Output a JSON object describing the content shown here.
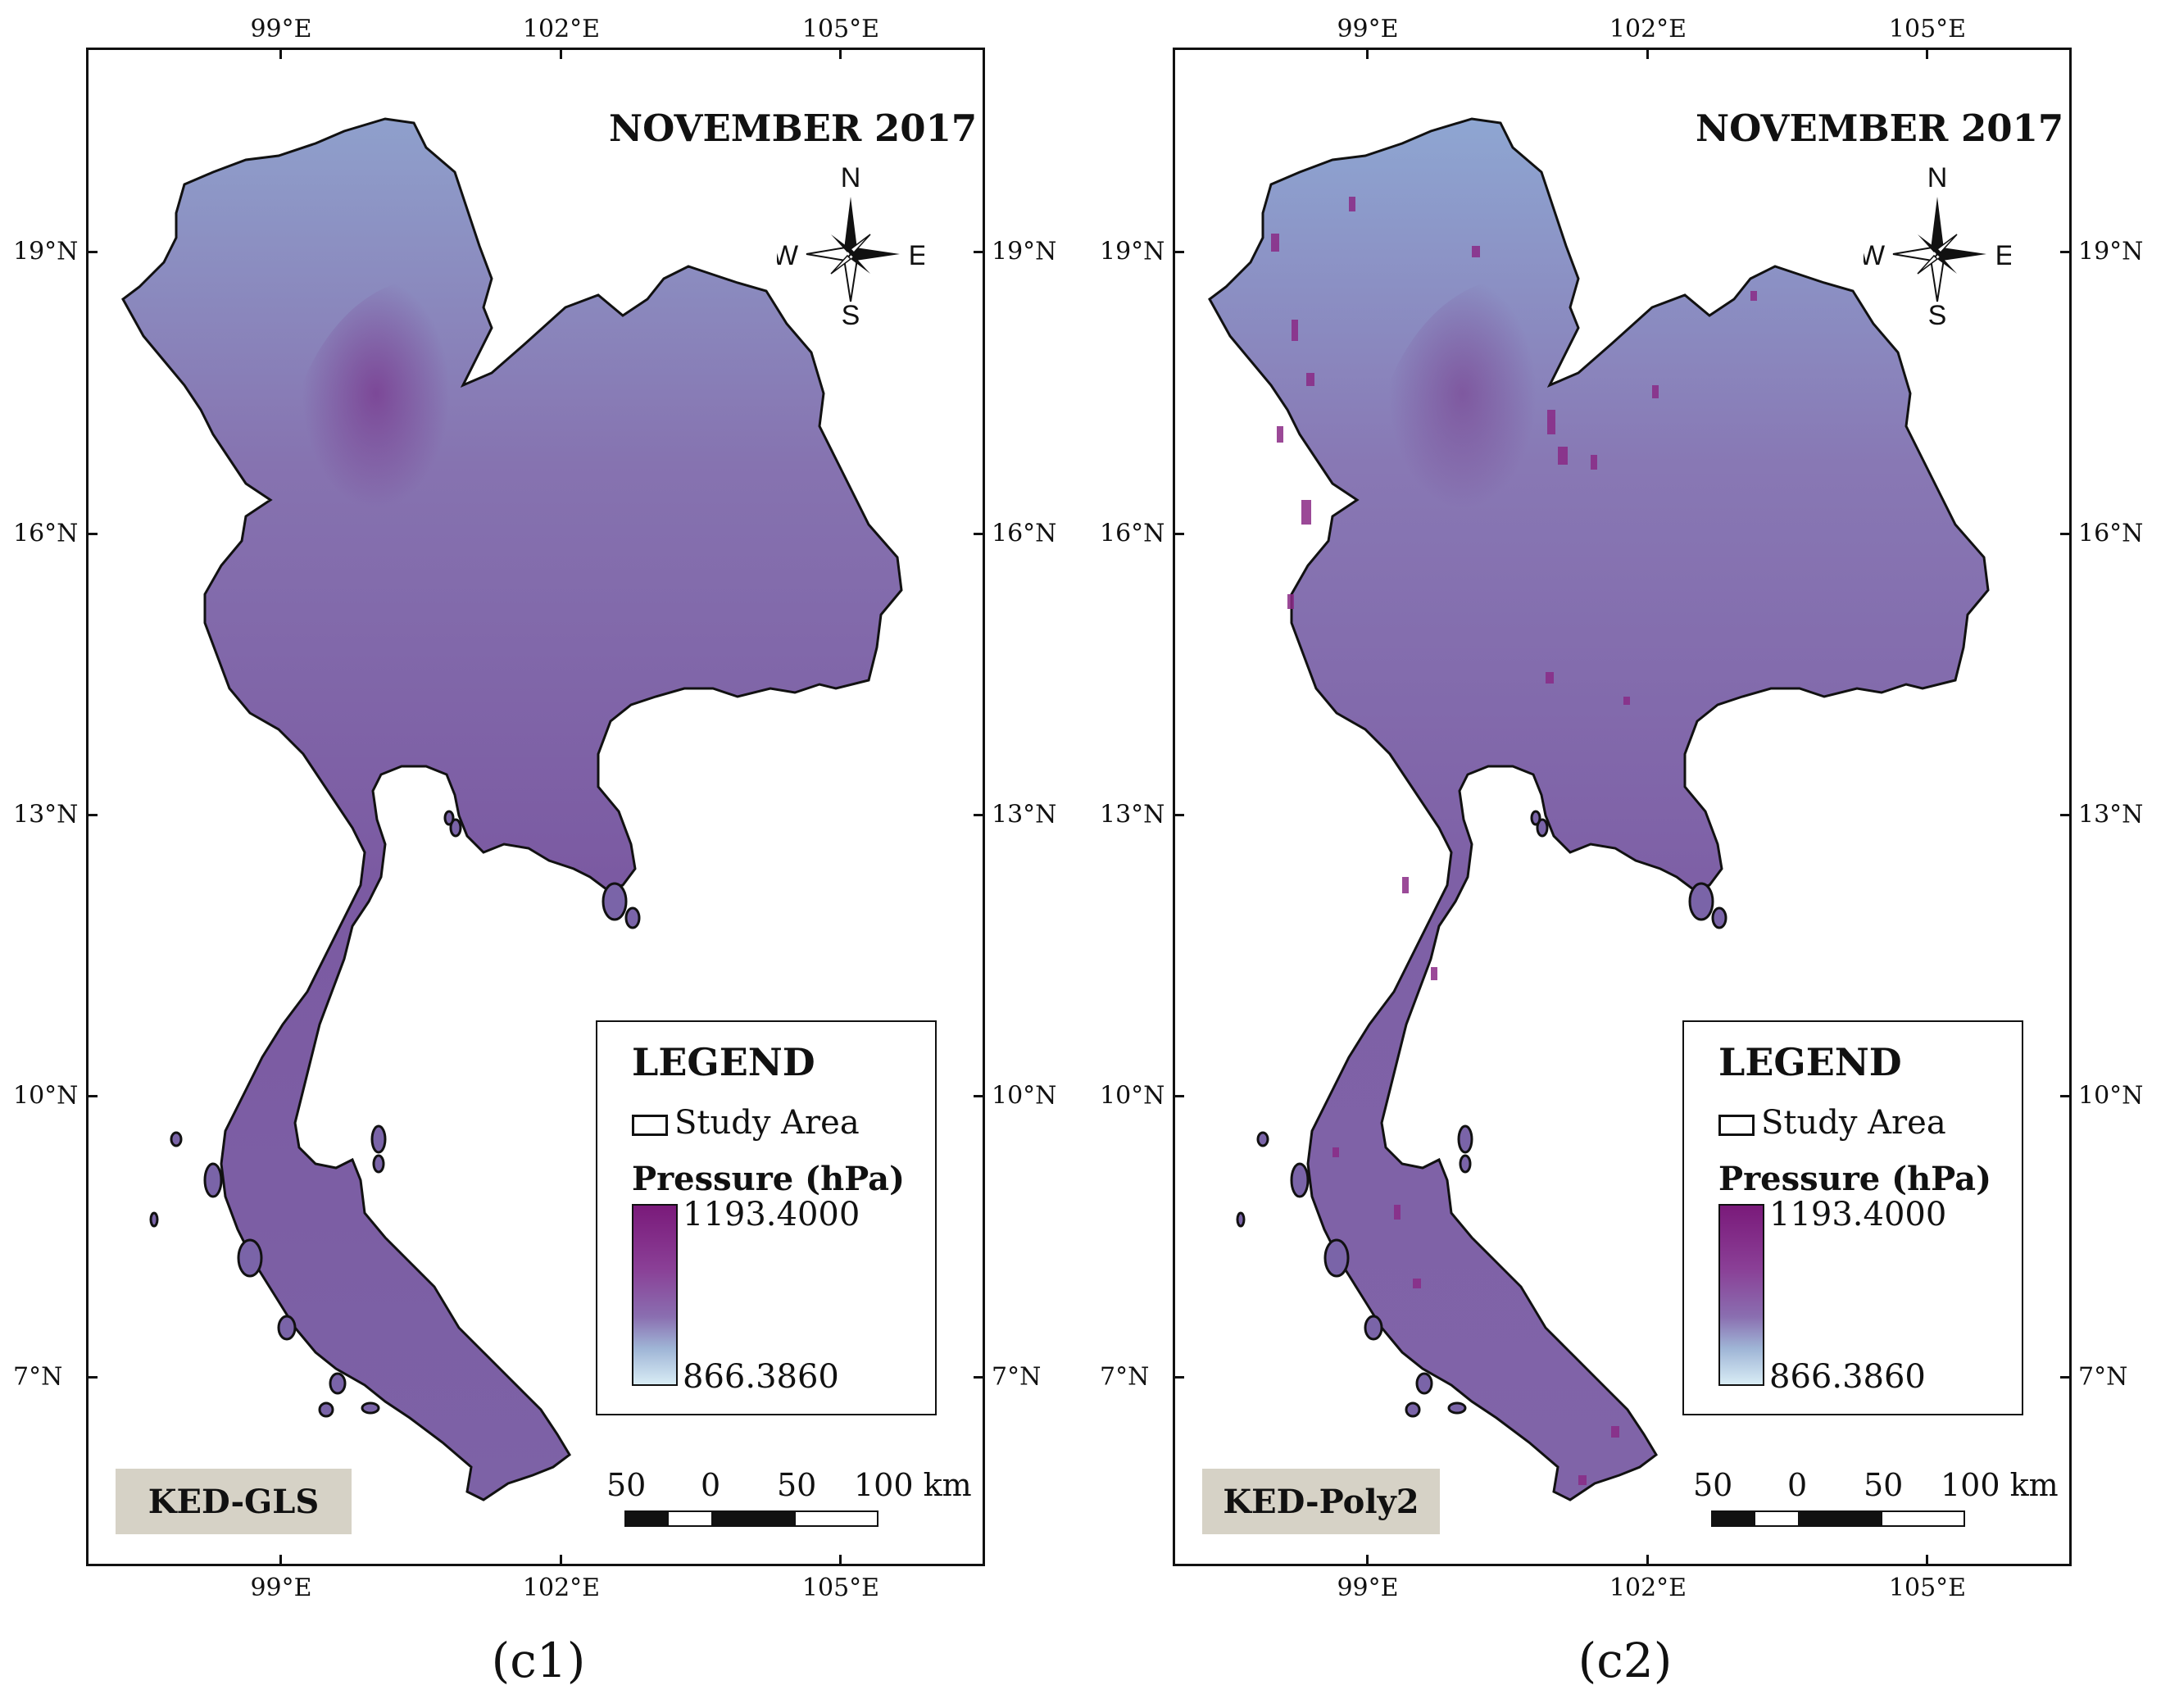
{
  "panels": [
    {
      "month_title": "NOVEMBER 2017",
      "method": "KED-GLS",
      "caption": "(c1)",
      "speckle": "low"
    },
    {
      "month_title": "NOVEMBER 2017",
      "method": "KED-Poly2",
      "caption": "(c2)",
      "speckle": "high"
    }
  ],
  "axes": {
    "lon_labels": [
      "99°E",
      "102°E",
      "105°E"
    ],
    "lat_labels": [
      "19°N",
      "16°N",
      "13°N",
      "10°N",
      "7°N"
    ]
  },
  "compass": {
    "n": "N",
    "s": "S",
    "e": "E",
    "w": "W"
  },
  "legend": {
    "title": "LEGEND",
    "study_area": "Study Area",
    "variable": "Pressure (hPa)",
    "max": "1193.4000",
    "min": "866.3860",
    "colors": {
      "high": "#7a1a7a",
      "mid": "#8a4f9e",
      "low": "#d8ecf5"
    }
  },
  "scale_bar": {
    "labels": [
      "50",
      "0",
      "50",
      "100 km"
    ]
  },
  "colors": {
    "land": "#7e64a8",
    "land_light": "#8fa4cc",
    "land_dark": "#7a3f92",
    "hotspot": "#8a2a86",
    "badge": "#d6d2c6"
  }
}
